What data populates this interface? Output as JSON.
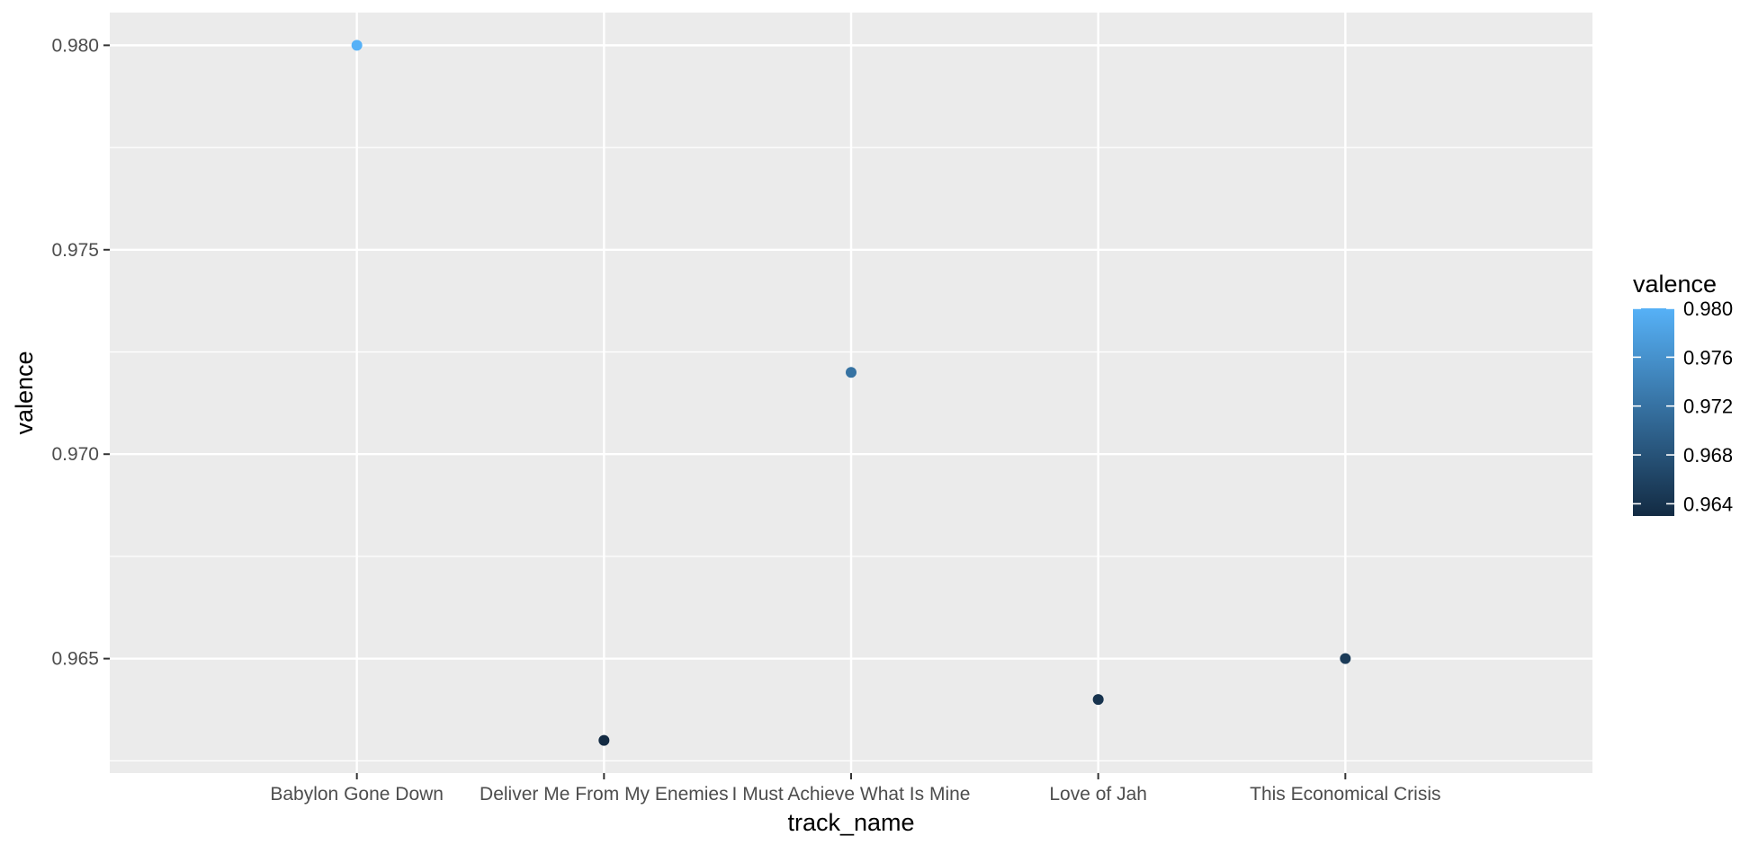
{
  "chart_data": {
    "type": "scatter",
    "title": "",
    "xlabel": "track_name",
    "ylabel": "valence",
    "categories": [
      "Babylon Gone Down",
      "Deliver Me From My Enemies",
      "I Must Achieve What Is Mine",
      "Love of Jah",
      "This Economical Crisis"
    ],
    "values": [
      0.98,
      0.963,
      0.972,
      0.964,
      0.965
    ],
    "ylim": [
      0.9622,
      0.9808
    ],
    "y_ticks": [
      0.965,
      0.97,
      0.975,
      0.98
    ],
    "y_tick_labels": [
      "0.965",
      "0.970",
      "0.975",
      "0.980"
    ],
    "grid": true,
    "legend": {
      "title": "valence",
      "placement": "right",
      "type": "colorbar",
      "range": [
        0.963,
        0.98
      ],
      "ticks": [
        0.964,
        0.968,
        0.972,
        0.976,
        0.98
      ],
      "tick_labels": [
        "0.964",
        "0.968",
        "0.972",
        "0.976",
        "0.980"
      ]
    },
    "colors": {
      "low": "#132B43",
      "high": "#56B1F7",
      "panel": "#EBEBEB",
      "grid": "#FFFFFF"
    }
  }
}
